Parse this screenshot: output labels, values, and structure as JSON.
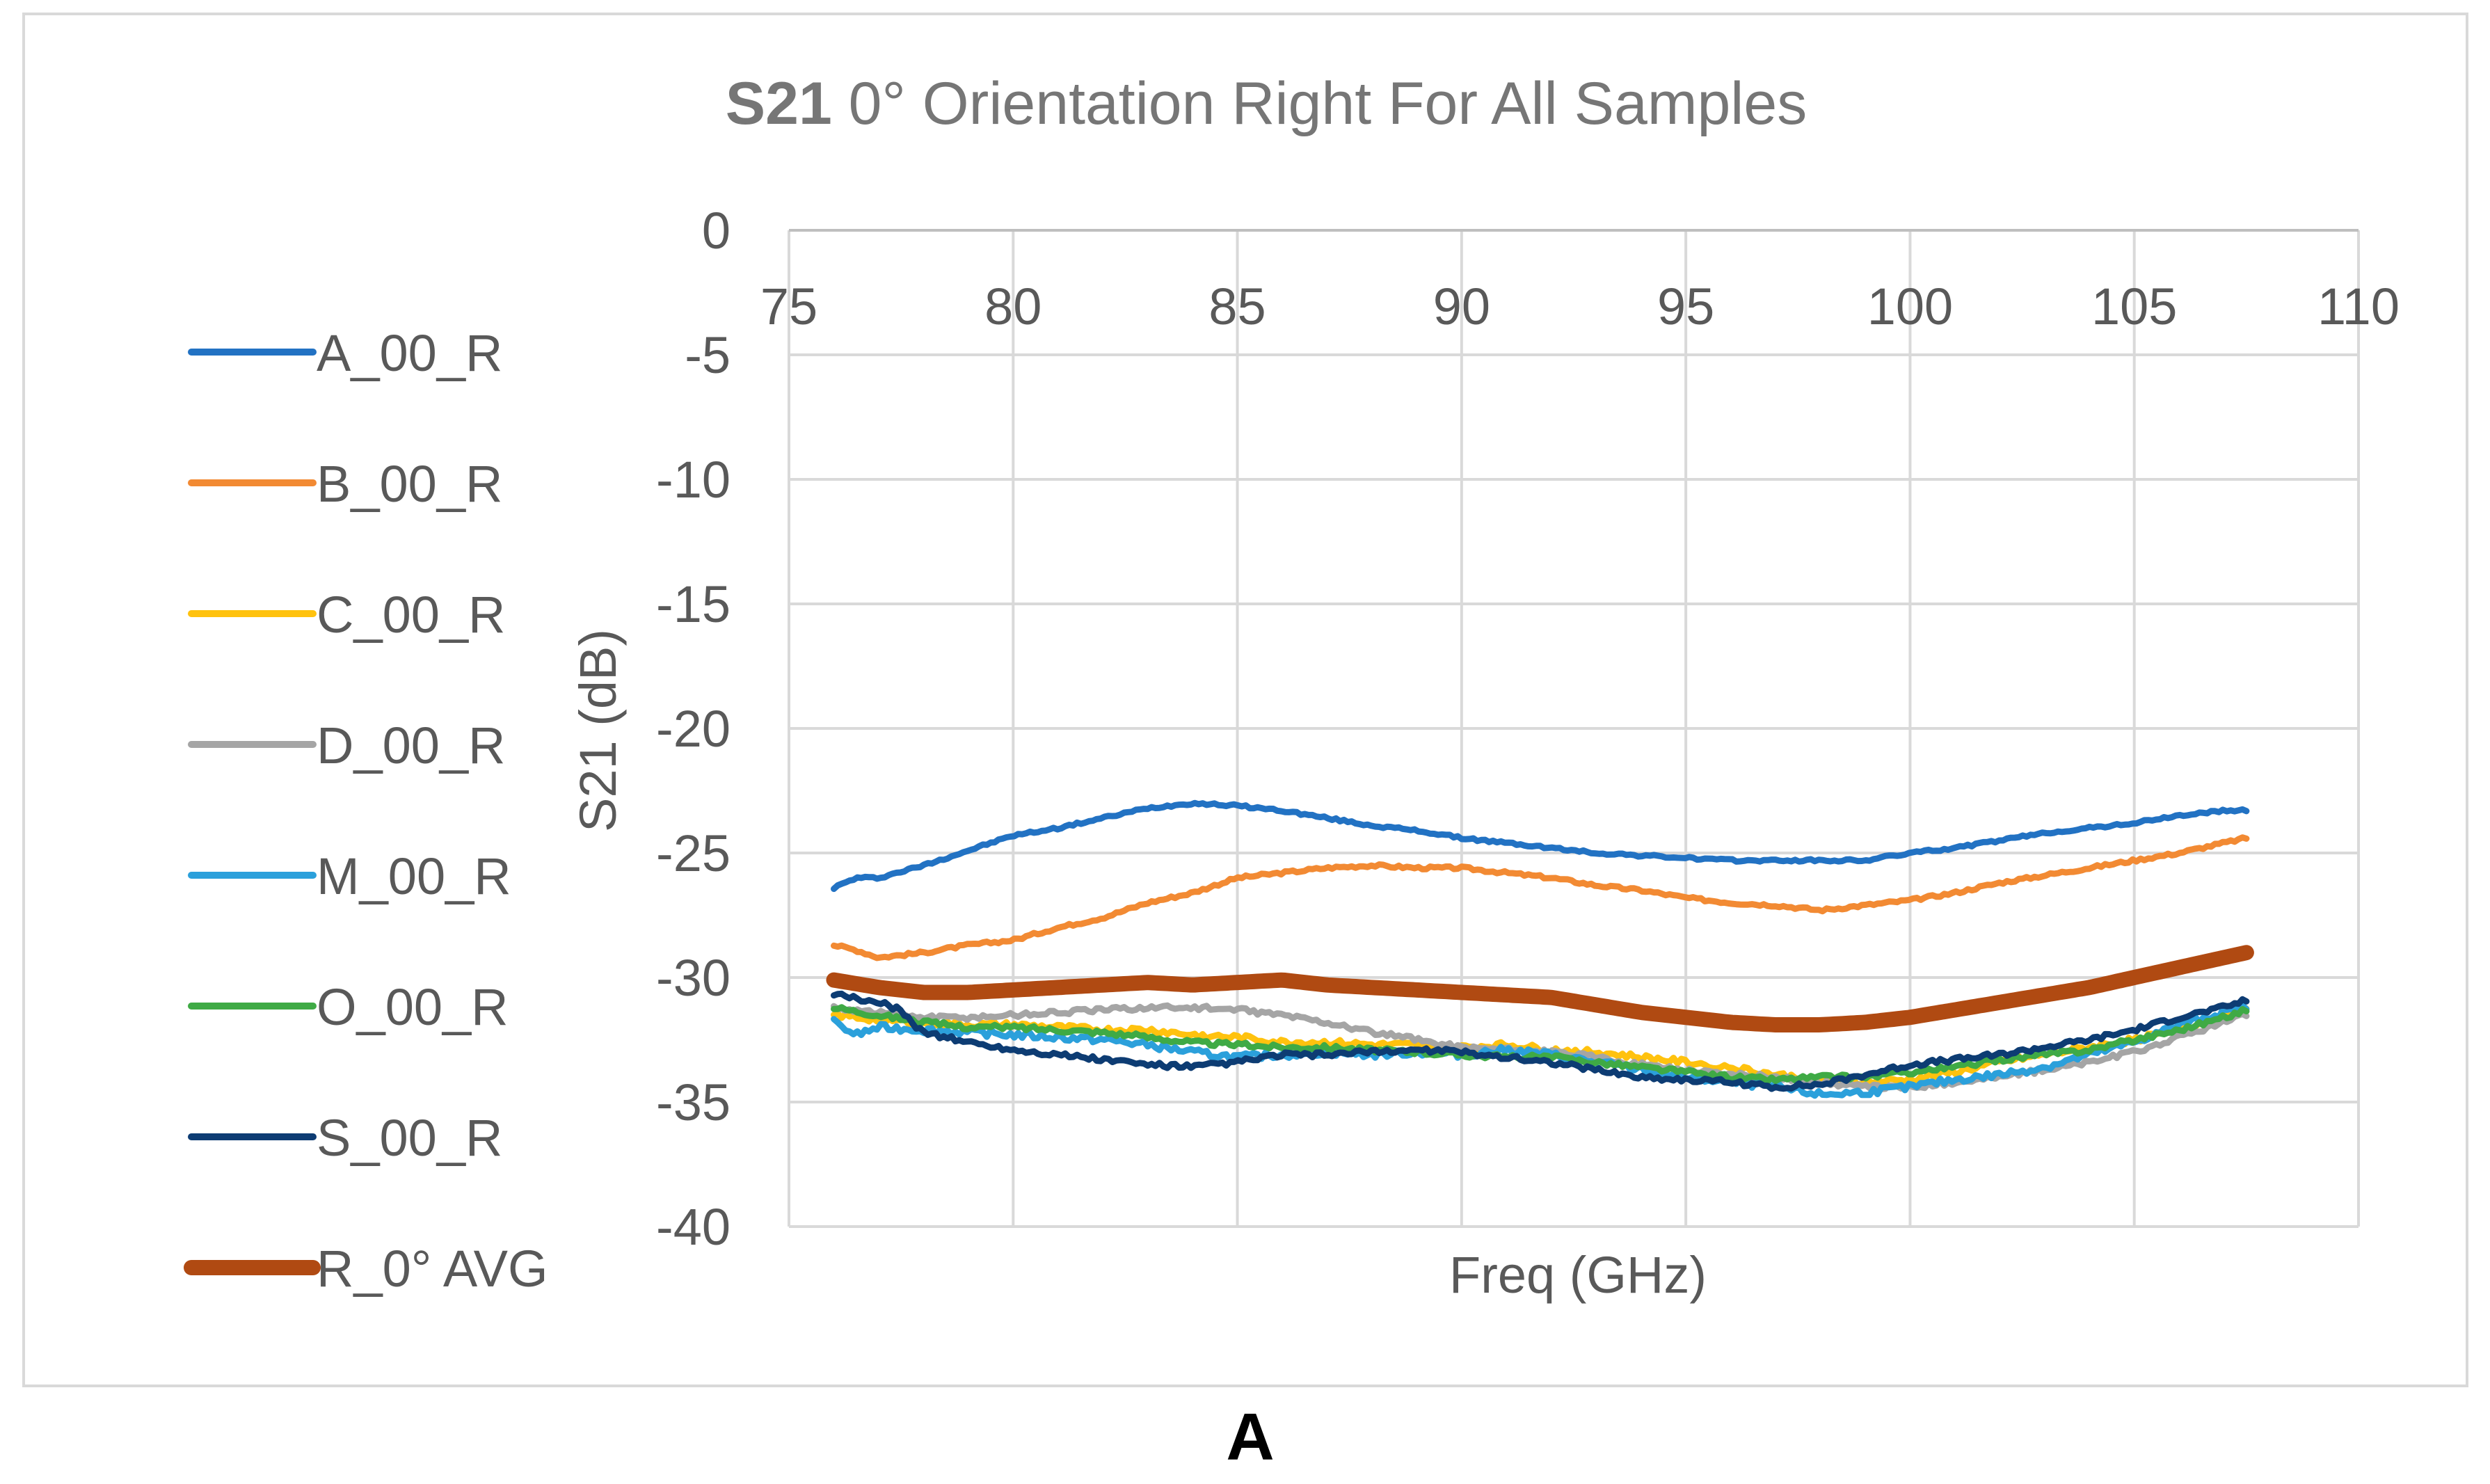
{
  "figure": {
    "panel_label": "A"
  },
  "chart_data": {
    "type": "line",
    "title_bold": "S21",
    "title_rest": " 0° Orientation Right For All Samples",
    "xlabel": "Freq (GHz)",
    "ylabel": "S21 (dB)",
    "xlim": [
      75,
      110
    ],
    "ylim": [
      -40,
      0
    ],
    "x_ticks": [
      75,
      80,
      85,
      90,
      95,
      100,
      105,
      110
    ],
    "y_ticks": [
      0,
      -5,
      -10,
      -15,
      -20,
      -25,
      -30,
      -35,
      -40
    ],
    "x_axis_position": "top",
    "grid": true,
    "legend_position": "left",
    "series": [
      {
        "name": "A_00_R",
        "color": "#2272C3",
        "width": "normal",
        "noise": 0.05,
        "x": [
          76,
          76.5,
          77,
          78,
          79,
          80,
          81,
          82,
          83,
          84,
          85,
          86,
          87,
          88,
          89,
          90,
          91,
          92,
          93,
          94,
          95,
          96,
          97,
          98,
          99,
          100,
          101,
          102,
          103,
          104,
          105,
          106,
          107,
          107.5
        ],
        "y": [
          -26.4,
          -26.0,
          -26.0,
          -25.5,
          -24.9,
          -24.3,
          -24.0,
          -23.6,
          -23.2,
          -23.0,
          -23.1,
          -23.3,
          -23.6,
          -23.9,
          -24.1,
          -24.4,
          -24.6,
          -24.8,
          -25.0,
          -25.1,
          -25.2,
          -25.3,
          -25.3,
          -25.3,
          -25.3,
          -25.0,
          -24.8,
          -24.5,
          -24.2,
          -24.0,
          -23.8,
          -23.5,
          -23.3,
          -23.3
        ]
      },
      {
        "name": "B_00_R",
        "color": "#F28A33",
        "width": "normal",
        "noise": 0.06,
        "x": [
          76,
          76.5,
          77,
          78,
          79,
          80,
          81,
          82,
          83,
          84,
          85,
          86,
          87,
          88,
          89,
          90,
          91,
          92,
          93,
          94,
          95,
          96,
          97,
          98,
          99,
          100,
          101,
          102,
          103,
          104,
          105,
          106,
          107,
          107.5
        ],
        "y": [
          -28.7,
          -28.9,
          -29.2,
          -29.0,
          -28.7,
          -28.5,
          -28.0,
          -27.6,
          -27.0,
          -26.6,
          -26.0,
          -25.8,
          -25.6,
          -25.5,
          -25.6,
          -25.6,
          -25.8,
          -26.0,
          -26.3,
          -26.5,
          -26.8,
          -27.0,
          -27.1,
          -27.3,
          -27.1,
          -26.9,
          -26.6,
          -26.2,
          -25.9,
          -25.6,
          -25.3,
          -25.0,
          -24.6,
          -24.4
        ]
      },
      {
        "name": "C_00_R",
        "color": "#FFC20E",
        "width": "normal",
        "noise": 0.12,
        "x": [
          76,
          77,
          78,
          79,
          80,
          81,
          82,
          83,
          84,
          85,
          86,
          87,
          88,
          89,
          90,
          91,
          92,
          93,
          94,
          95,
          96,
          97,
          98,
          99,
          100,
          101,
          102,
          103,
          104,
          105,
          106,
          107,
          107.5
        ],
        "y": [
          -31.5,
          -31.7,
          -31.8,
          -31.9,
          -31.9,
          -32.0,
          -32.1,
          -32.1,
          -32.3,
          -32.4,
          -32.6,
          -32.6,
          -32.7,
          -32.7,
          -32.8,
          -32.7,
          -32.9,
          -33.0,
          -33.2,
          -33.4,
          -33.6,
          -33.9,
          -34.1,
          -34.2,
          -34.1,
          -33.8,
          -33.4,
          -33.1,
          -32.8,
          -32.5,
          -32.1,
          -31.5,
          -31.2
        ]
      },
      {
        "name": "D_00_R",
        "color": "#A5A5A5",
        "width": "normal",
        "noise": 0.1,
        "x": [
          76,
          77,
          78,
          79,
          80,
          81,
          82,
          83,
          84,
          85,
          86,
          87,
          88,
          89,
          90,
          91,
          92,
          93,
          94,
          95,
          96,
          97,
          98,
          99,
          100,
          101,
          102,
          103,
          104,
          105,
          106,
          107,
          107.5
        ],
        "y": [
          -31.2,
          -31.4,
          -31.6,
          -31.6,
          -31.5,
          -31.4,
          -31.3,
          -31.2,
          -31.2,
          -31.3,
          -31.5,
          -31.8,
          -32.2,
          -32.5,
          -32.8,
          -32.9,
          -33.0,
          -33.2,
          -33.5,
          -33.7,
          -33.9,
          -34.0,
          -34.2,
          -34.4,
          -34.4,
          -34.2,
          -34.0,
          -33.7,
          -33.4,
          -33.0,
          -32.4,
          -31.8,
          -31.5
        ]
      },
      {
        "name": "M_00_R",
        "color": "#2BA0DB",
        "width": "normal",
        "noise": 0.14,
        "x": [
          76,
          76.5,
          77,
          78,
          79,
          80,
          81,
          82,
          83,
          84,
          85,
          86,
          87,
          88,
          89,
          90,
          91,
          92,
          93,
          94,
          95,
          96,
          97,
          98,
          99,
          100,
          101,
          102,
          103,
          104,
          105,
          106,
          107,
          107.5
        ],
        "y": [
          -31.8,
          -32.3,
          -32.0,
          -32.1,
          -32.2,
          -32.3,
          -32.4,
          -32.5,
          -32.7,
          -33.0,
          -33.2,
          -33.1,
          -33.0,
          -33.1,
          -33.0,
          -33.1,
          -32.9,
          -33.1,
          -33.4,
          -33.7,
          -34.0,
          -34.2,
          -34.4,
          -34.7,
          -34.6,
          -34.4,
          -34.1,
          -33.9,
          -33.6,
          -33.1,
          -32.6,
          -31.9,
          -31.4,
          -31.2
        ]
      },
      {
        "name": "O_00_R",
        "color": "#3FAA45",
        "width": "normal",
        "noise": 0.1,
        "x": [
          76,
          77,
          78,
          79,
          80,
          81,
          82,
          83,
          84,
          85,
          86,
          87,
          88,
          89,
          90,
          91,
          92,
          93,
          94,
          95,
          96,
          97,
          98,
          99,
          100,
          101,
          102,
          103,
          104,
          105,
          106,
          107,
          107.5
        ],
        "y": [
          -31.2,
          -31.5,
          -31.8,
          -32.0,
          -32.0,
          -32.1,
          -32.2,
          -32.4,
          -32.6,
          -32.7,
          -32.8,
          -32.8,
          -32.9,
          -33.0,
          -33.1,
          -33.2,
          -33.2,
          -33.4,
          -33.6,
          -33.8,
          -34.0,
          -34.1,
          -34.0,
          -34.0,
          -33.8,
          -33.6,
          -33.3,
          -33.1,
          -32.9,
          -32.5,
          -32.1,
          -31.6,
          -31.3
        ]
      },
      {
        "name": "S_00_R",
        "color": "#0D3C73",
        "width": "normal",
        "noise": 0.1,
        "x": [
          76,
          77,
          77.5,
          77.8,
          78,
          79,
          80,
          81,
          82,
          83,
          84,
          85,
          86,
          87,
          88,
          89,
          90,
          91,
          92,
          93,
          94,
          95,
          96,
          97,
          98,
          99,
          100,
          101,
          102,
          103,
          104,
          105,
          106,
          107,
          107.5
        ],
        "y": [
          -30.7,
          -31.0,
          -31.3,
          -31.9,
          -32.2,
          -32.6,
          -32.9,
          -33.1,
          -33.3,
          -33.5,
          -33.6,
          -33.4,
          -33.1,
          -33.1,
          -33.0,
          -32.9,
          -33.0,
          -33.2,
          -33.4,
          -33.7,
          -34.0,
          -34.1,
          -34.2,
          -34.4,
          -34.3,
          -33.9,
          -33.5,
          -33.3,
          -33.1,
          -32.8,
          -32.5,
          -32.1,
          -31.6,
          -31.2,
          -30.9
        ]
      },
      {
        "name": "R_0° AVG",
        "color": "#B04A12",
        "width": "thick",
        "noise": 0,
        "x": [
          76,
          77,
          78,
          79,
          80,
          81,
          82,
          83,
          84,
          85,
          86,
          87,
          88,
          89,
          90,
          91,
          92,
          93,
          94,
          95,
          96,
          97,
          98,
          99,
          100,
          101,
          102,
          103,
          104,
          105,
          106,
          107,
          107.5
        ],
        "y": [
          -30.1,
          -30.4,
          -30.6,
          -30.6,
          -30.5,
          -30.4,
          -30.3,
          -30.2,
          -30.3,
          -30.2,
          -30.1,
          -30.3,
          -30.4,
          -30.5,
          -30.6,
          -30.7,
          -30.8,
          -31.1,
          -31.4,
          -31.6,
          -31.8,
          -31.9,
          -31.9,
          -31.8,
          -31.6,
          -31.3,
          -31.0,
          -30.7,
          -30.4,
          -30.0,
          -29.6,
          -29.2,
          -29.0
        ]
      }
    ]
  }
}
